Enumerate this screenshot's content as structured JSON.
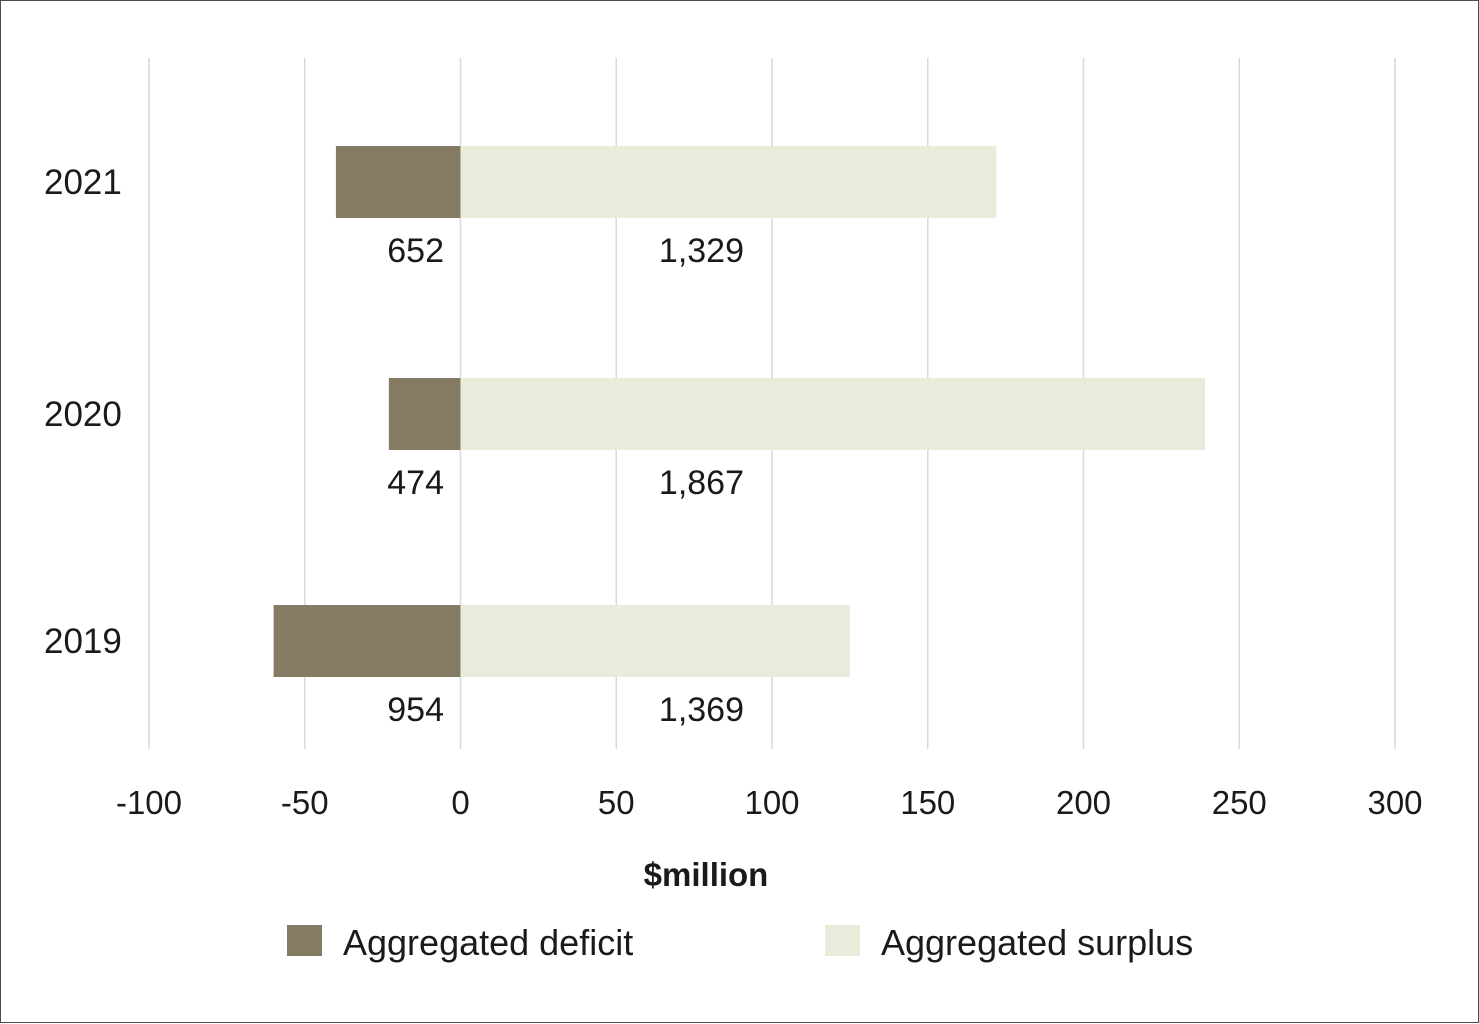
{
  "chart_data": {
    "type": "bar",
    "orientation": "horizontal",
    "stacked": true,
    "categories": [
      "2021",
      "2020",
      "2019"
    ],
    "series": [
      {
        "name": "Aggregated deficit",
        "values": [
          -40,
          -23,
          -60
        ],
        "labels": [
          "652",
          "474",
          "954"
        ],
        "color": "#857b63"
      },
      {
        "name": "Aggregated surplus",
        "values": [
          172,
          239,
          125
        ],
        "labels": [
          "1,329",
          "1,867",
          "1,369"
        ],
        "color": "#e9ecdb"
      }
    ],
    "xlabel": "$million",
    "xlim": [
      -100,
      300
    ],
    "xticks": [
      -100,
      -50,
      0,
      50,
      100,
      150,
      200,
      250,
      300
    ],
    "xtick_labels": [
      "-100",
      "-50",
      "0",
      "50",
      "100",
      "150",
      "200",
      "250",
      "300"
    ],
    "grid": true,
    "gridline_color": "#d9d9d9",
    "legend_placement": "bottom"
  }
}
